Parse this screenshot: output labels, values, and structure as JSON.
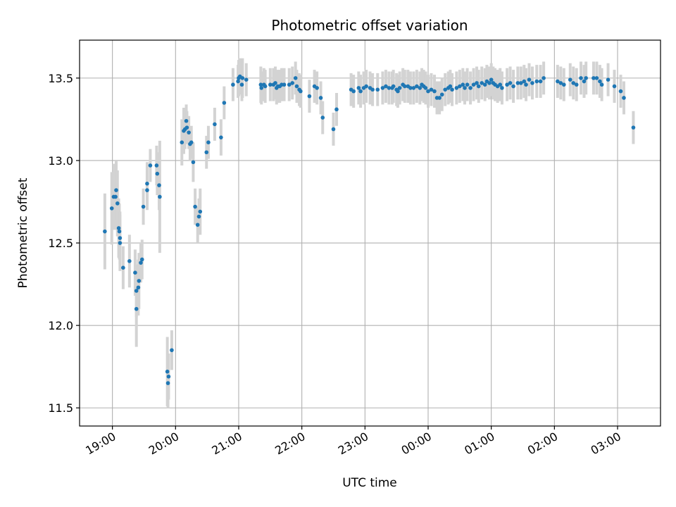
{
  "chart_data": {
    "type": "scatter",
    "title": "Photometric offset variation",
    "xlabel": "UTC time",
    "ylabel": "Photometric offset",
    "x_tick_labels": [
      "19:00",
      "20:00",
      "21:00",
      "22:00",
      "23:00",
      "00:00",
      "01:00",
      "02:00",
      "03:00"
    ],
    "x_tick_hours": [
      19,
      20,
      21,
      22,
      23,
      24,
      25,
      26,
      27
    ],
    "xlim_hours": [
      18.48,
      27.68
    ],
    "ylim": [
      11.39,
      13.73
    ],
    "y_ticks": [
      11.5,
      12.0,
      12.5,
      13.0,
      13.5
    ],
    "y_tick_labels": [
      "11.5",
      "12.0",
      "12.5",
      "13.0",
      "13.5"
    ],
    "grid": true,
    "colors": {
      "point": "#1f77b4",
      "errorbar": "#d3d3d3",
      "grid": "#b0b0b0"
    },
    "points_note_units": "x in UTC hours (24+ = after midnight), y in photometric offset, e = error half-width",
    "points": [
      [
        18.88,
        12.57,
        0.23
      ],
      [
        18.99,
        12.71,
        0.22
      ],
      [
        19.02,
        12.78,
        0.2
      ],
      [
        19.05,
        12.78,
        0.2
      ],
      [
        19.06,
        12.82,
        0.18
      ],
      [
        19.08,
        12.74,
        0.2
      ],
      [
        19.1,
        12.59,
        0.18
      ],
      [
        19.11,
        12.57,
        0.17
      ],
      [
        19.12,
        12.53,
        0.16
      ],
      [
        19.12,
        12.5,
        0.17
      ],
      [
        19.17,
        12.35,
        0.13
      ],
      [
        19.27,
        12.39,
        0.16
      ],
      [
        19.36,
        12.32,
        0.14
      ],
      [
        19.38,
        12.21,
        0.16
      ],
      [
        19.38,
        12.1,
        0.23
      ],
      [
        19.41,
        12.23,
        0.17
      ],
      [
        19.42,
        12.27,
        0.17
      ],
      [
        19.45,
        12.38,
        0.12
      ],
      [
        19.47,
        12.4,
        0.12
      ],
      [
        19.49,
        12.72,
        0.11
      ],
      [
        19.55,
        12.82,
        0.12
      ],
      [
        19.55,
        12.86,
        0.13
      ],
      [
        19.6,
        12.97,
        0.1
      ],
      [
        19.7,
        12.97,
        0.12
      ],
      [
        19.71,
        12.92,
        0.13
      ],
      [
        19.74,
        12.85,
        0.15
      ],
      [
        19.75,
        12.78,
        0.34
      ],
      [
        19.87,
        11.72,
        0.21
      ],
      [
        19.88,
        11.65,
        0.15
      ],
      [
        19.89,
        11.69,
        0.14
      ],
      [
        19.94,
        11.85,
        0.12
      ],
      [
        20.1,
        13.11,
        0.14
      ],
      [
        20.13,
        13.18,
        0.14
      ],
      [
        20.15,
        13.19,
        0.12
      ],
      [
        20.17,
        13.24,
        0.1
      ],
      [
        20.18,
        13.2,
        0.1
      ],
      [
        20.21,
        13.17,
        0.1
      ],
      [
        20.23,
        13.1,
        0.1
      ],
      [
        20.25,
        13.11,
        0.1
      ],
      [
        20.28,
        12.99,
        0.12
      ],
      [
        20.31,
        12.72,
        0.11
      ],
      [
        20.35,
        12.61,
        0.11
      ],
      [
        20.37,
        12.66,
        0.11
      ],
      [
        20.39,
        12.69,
        0.14
      ],
      [
        20.49,
        13.05,
        0.1
      ],
      [
        20.52,
        13.11,
        0.1
      ],
      [
        20.62,
        13.22,
        0.1
      ],
      [
        20.72,
        13.14,
        0.11
      ],
      [
        20.77,
        13.35,
        0.1
      ],
      [
        20.91,
        13.46,
        0.1
      ],
      [
        20.99,
        13.48,
        0.1
      ],
      [
        21.0,
        13.5,
        0.11
      ],
      [
        21.02,
        13.51,
        0.11
      ],
      [
        21.05,
        13.46,
        0.1
      ],
      [
        21.06,
        13.5,
        0.12
      ],
      [
        21.12,
        13.49,
        0.1
      ],
      [
        21.35,
        13.46,
        0.11
      ],
      [
        21.36,
        13.44,
        0.1
      ],
      [
        21.4,
        13.46,
        0.1
      ],
      [
        21.42,
        13.45,
        0.1
      ],
      [
        21.5,
        13.46,
        0.1
      ],
      [
        21.55,
        13.46,
        0.1
      ],
      [
        21.58,
        13.47,
        0.1
      ],
      [
        21.6,
        13.44,
        0.1
      ],
      [
        21.62,
        13.45,
        0.1
      ],
      [
        21.65,
        13.45,
        0.1
      ],
      [
        21.68,
        13.46,
        0.1
      ],
      [
        21.72,
        13.46,
        0.1
      ],
      [
        21.8,
        13.46,
        0.1
      ],
      [
        21.85,
        13.47,
        0.1
      ],
      [
        21.9,
        13.5,
        0.1
      ],
      [
        21.92,
        13.45,
        0.1
      ],
      [
        21.96,
        13.43,
        0.1
      ],
      [
        21.98,
        13.42,
        0.1
      ],
      [
        22.12,
        13.39,
        0.1
      ],
      [
        22.2,
        13.45,
        0.1
      ],
      [
        22.24,
        13.44,
        0.1
      ],
      [
        22.3,
        13.38,
        0.1
      ],
      [
        22.33,
        13.26,
        0.1
      ],
      [
        22.5,
        13.19,
        0.1
      ],
      [
        22.55,
        13.31,
        0.1
      ],
      [
        22.78,
        13.43,
        0.1
      ],
      [
        22.82,
        13.42,
        0.1
      ],
      [
        22.9,
        13.44,
        0.1
      ],
      [
        22.93,
        13.42,
        0.1
      ],
      [
        22.98,
        13.44,
        0.1
      ],
      [
        23.02,
        13.45,
        0.1
      ],
      [
        23.08,
        13.44,
        0.1
      ],
      [
        23.12,
        13.43,
        0.1
      ],
      [
        23.2,
        13.43,
        0.1
      ],
      [
        23.28,
        13.44,
        0.1
      ],
      [
        23.33,
        13.45,
        0.1
      ],
      [
        23.38,
        13.44,
        0.1
      ],
      [
        23.43,
        13.44,
        0.1
      ],
      [
        23.45,
        13.45,
        0.1
      ],
      [
        23.5,
        13.43,
        0.1
      ],
      [
        23.52,
        13.42,
        0.1
      ],
      [
        23.55,
        13.44,
        0.1
      ],
      [
        23.6,
        13.46,
        0.1
      ],
      [
        23.63,
        13.45,
        0.1
      ],
      [
        23.68,
        13.45,
        0.1
      ],
      [
        23.72,
        13.44,
        0.1
      ],
      [
        23.77,
        13.44,
        0.1
      ],
      [
        23.82,
        13.45,
        0.1
      ],
      [
        23.87,
        13.44,
        0.1
      ],
      [
        23.9,
        13.46,
        0.1
      ],
      [
        23.93,
        13.45,
        0.1
      ],
      [
        23.96,
        13.44,
        0.1
      ],
      [
        24.0,
        13.42,
        0.1
      ],
      [
        24.05,
        13.43,
        0.1
      ],
      [
        24.1,
        13.42,
        0.1
      ],
      [
        24.14,
        13.38,
        0.1
      ],
      [
        24.18,
        13.38,
        0.1
      ],
      [
        24.22,
        13.4,
        0.1
      ],
      [
        24.27,
        13.43,
        0.1
      ],
      [
        24.32,
        13.44,
        0.1
      ],
      [
        24.35,
        13.45,
        0.1
      ],
      [
        24.38,
        13.43,
        0.1
      ],
      [
        24.45,
        13.44,
        0.1
      ],
      [
        24.5,
        13.45,
        0.1
      ],
      [
        24.55,
        13.46,
        0.1
      ],
      [
        24.58,
        13.44,
        0.1
      ],
      [
        24.62,
        13.46,
        0.1
      ],
      [
        24.67,
        13.44,
        0.1
      ],
      [
        24.72,
        13.46,
        0.1
      ],
      [
        24.77,
        13.47,
        0.1
      ],
      [
        24.8,
        13.45,
        0.1
      ],
      [
        24.85,
        13.47,
        0.1
      ],
      [
        24.9,
        13.46,
        0.1
      ],
      [
        24.93,
        13.48,
        0.1
      ],
      [
        24.97,
        13.47,
        0.1
      ],
      [
        25.0,
        13.49,
        0.1
      ],
      [
        25.03,
        13.47,
        0.1
      ],
      [
        25.06,
        13.46,
        0.1
      ],
      [
        25.1,
        13.45,
        0.1
      ],
      [
        25.14,
        13.46,
        0.1
      ],
      [
        25.17,
        13.44,
        0.1
      ],
      [
        25.25,
        13.46,
        0.1
      ],
      [
        25.3,
        13.47,
        0.1
      ],
      [
        25.35,
        13.45,
        0.1
      ],
      [
        25.42,
        13.47,
        0.1
      ],
      [
        25.47,
        13.47,
        0.1
      ],
      [
        25.52,
        13.48,
        0.1
      ],
      [
        25.55,
        13.46,
        0.1
      ],
      [
        25.6,
        13.49,
        0.1
      ],
      [
        25.65,
        13.47,
        0.1
      ],
      [
        25.72,
        13.48,
        0.1
      ],
      [
        25.78,
        13.48,
        0.1
      ],
      [
        25.83,
        13.5,
        0.1
      ],
      [
        26.05,
        13.48,
        0.1
      ],
      [
        26.1,
        13.47,
        0.1
      ],
      [
        26.15,
        13.46,
        0.1
      ],
      [
        26.25,
        13.49,
        0.1
      ],
      [
        26.3,
        13.47,
        0.1
      ],
      [
        26.35,
        13.46,
        0.1
      ],
      [
        26.42,
        13.5,
        0.1
      ],
      [
        26.47,
        13.48,
        0.1
      ],
      [
        26.5,
        13.5,
        0.1
      ],
      [
        26.62,
        13.5,
        0.1
      ],
      [
        26.67,
        13.5,
        0.1
      ],
      [
        26.72,
        13.48,
        0.1
      ],
      [
        26.75,
        13.46,
        0.1
      ],
      [
        26.85,
        13.49,
        0.1
      ],
      [
        26.95,
        13.45,
        0.1
      ],
      [
        27.05,
        13.42,
        0.1
      ],
      [
        27.1,
        13.38,
        0.1
      ],
      [
        27.25,
        13.2,
        0.1
      ]
    ]
  }
}
